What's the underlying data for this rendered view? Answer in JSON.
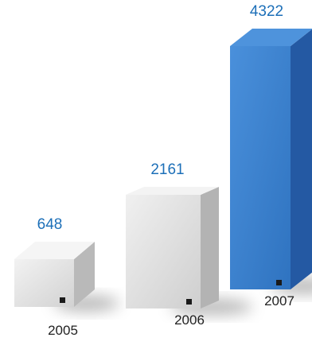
{
  "chart_data": {
    "type": "bar",
    "style": "3d-block",
    "categories": [
      "2005",
      "2006",
      "2007"
    ],
    "values": [
      648,
      2161,
      4322
    ],
    "value_labels": [
      "648",
      "2161",
      "4322"
    ],
    "title": "",
    "xlabel": "",
    "ylabel": "",
    "grid": false,
    "legend": "none",
    "ylim": [
      0,
      4322
    ],
    "colors": {
      "value_label": "#1c6fb8",
      "category_label": "#222222",
      "marker": "#1a1a1a",
      "bars": [
        {
          "front": "#e4e4e4",
          "side": "#b9b9b9",
          "top": "#f5f5f5"
        },
        {
          "front": "#e1e1e1",
          "side": "#b3b3b3",
          "top": "#f3f3f3"
        },
        {
          "front": "#3b82cf",
          "side": "#2459a3",
          "top": "#4e93dc"
        }
      ]
    }
  }
}
